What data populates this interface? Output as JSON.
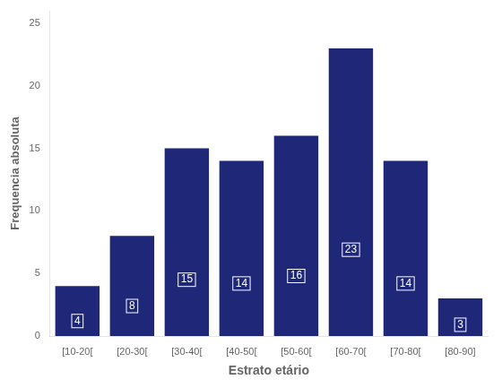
{
  "chart_data": {
    "type": "bar",
    "categories": [
      "[10-20[",
      "[20-30[",
      "[30-40[",
      "[40-50[",
      "[50-60[",
      "[60-70[",
      "[70-80[",
      "[80-90]"
    ],
    "values": [
      4,
      8,
      15,
      14,
      16,
      23,
      14,
      3
    ],
    "color": "#1f2878",
    "xlabel": "Estrato etário",
    "ylabel": "Frequencia absoluta",
    "ylim": [
      0,
      26
    ],
    "yticks": [
      0,
      5,
      10,
      15,
      20,
      25
    ],
    "grid": false,
    "data_labels": true
  }
}
